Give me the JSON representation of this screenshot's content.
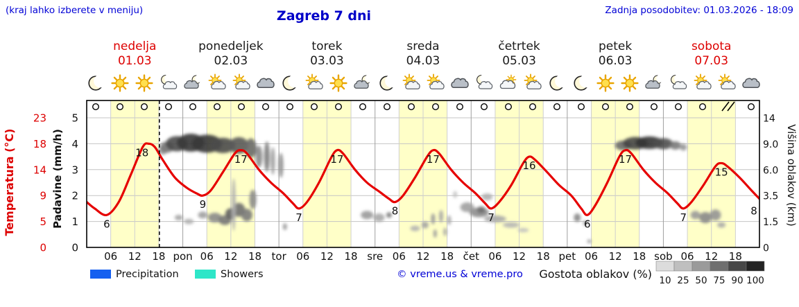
{
  "header": {
    "hint": "(kraj lahko izberete v meniju)",
    "title": "Zagreb 7 dni",
    "updated": "Zadnja posodobitev: 01.03.2026 - 18:09"
  },
  "colors": {
    "accent_blue": "#0000d6",
    "temp_red": "#e60000",
    "day_red": "#dd0000",
    "band_yellow": "#ffffc8",
    "precip_blue": "#1560f0",
    "showers_cyan": "#2ee6c8"
  },
  "days": [
    {
      "name": "nedelja",
      "date": "01.03",
      "highlight": true
    },
    {
      "name": "ponedeljek",
      "date": "02.03",
      "highlight": false
    },
    {
      "name": "torek",
      "date": "03.03",
      "highlight": false
    },
    {
      "name": "sreda",
      "date": "04.03",
      "highlight": false
    },
    {
      "name": "četrtek",
      "date": "05.03",
      "highlight": false
    },
    {
      "name": "petek",
      "date": "06.03",
      "highlight": false
    },
    {
      "name": "sobota",
      "date": "07.03",
      "highlight": true
    }
  ],
  "day_abbrs": [
    "pon",
    "tor",
    "sre",
    "čet",
    "pet",
    "sob"
  ],
  "hour_labels": [
    "06",
    "12",
    "18"
  ],
  "axes": {
    "temp_label": "Temperatura (°C)",
    "temp_ticks": [
      "23",
      "18",
      "14",
      "9",
      "5",
      "0"
    ],
    "precip_label": "Padavine (mm/h)",
    "precip_ticks": [
      "5",
      "4",
      "3",
      "2",
      "1",
      "0"
    ],
    "cloud_label": "Višina oblakov (km)",
    "cloud_ticks": [
      "14",
      "9.0",
      "6.0",
      "3.5",
      "1.5",
      "0"
    ]
  },
  "legend": {
    "precipitation": "Precipitation",
    "showers": "Showers",
    "copyright": "© vreme.us & vreme.pro",
    "cloud_density": "Gostota oblakov (%)",
    "scale_values": [
      "10",
      "25",
      "50",
      "75",
      "90",
      "100"
    ],
    "scale_grays": [
      "#dcdcdc",
      "#bfbfbf",
      "#9a9a9a",
      "#6f6f6f",
      "#474747",
      "#232323"
    ]
  },
  "chart_data": {
    "type": "line",
    "title": "Zagreb 7 dni",
    "x_unit": "hours from 01.03 00:00",
    "x_range": [
      0,
      168
    ],
    "now_hour": 18.15,
    "day_length_hours": 24,
    "daylight_band_hours": [
      6,
      18
    ],
    "temp_axis_values": [
      0,
      5,
      9,
      14,
      18,
      23
    ],
    "cloud_axis_values": [
      0,
      1.5,
      3.5,
      6,
      9,
      14
    ],
    "temperature_series": {
      "name": "Temperatura",
      "color": "#e60000",
      "points": [
        [
          0,
          8
        ],
        [
          2,
          7
        ],
        [
          5,
          6
        ],
        [
          8,
          8
        ],
        [
          11,
          13
        ],
        [
          14,
          17.5
        ],
        [
          15.5,
          18
        ],
        [
          17,
          17.5
        ],
        [
          19,
          15.5
        ],
        [
          22,
          12.5
        ],
        [
          25,
          10.5
        ],
        [
          27.5,
          9.4
        ],
        [
          29,
          9
        ],
        [
          31,
          10
        ],
        [
          34,
          13.5
        ],
        [
          37,
          16.5
        ],
        [
          38.5,
          17
        ],
        [
          40,
          16.5
        ],
        [
          43,
          14
        ],
        [
          46,
          11.5
        ],
        [
          49,
          9.5
        ],
        [
          51.5,
          7.8
        ],
        [
          53,
          7
        ],
        [
          55,
          8
        ],
        [
          58,
          11.5
        ],
        [
          61,
          15.8
        ],
        [
          62.5,
          17
        ],
        [
          64,
          16.5
        ],
        [
          67,
          14
        ],
        [
          70,
          11.5
        ],
        [
          73,
          9.8
        ],
        [
          75.5,
          8.5
        ],
        [
          77,
          8
        ],
        [
          79,
          9
        ],
        [
          82,
          12.5
        ],
        [
          85,
          16
        ],
        [
          86.5,
          17
        ],
        [
          88,
          16.5
        ],
        [
          91,
          14
        ],
        [
          94,
          11.5
        ],
        [
          97,
          9.5
        ],
        [
          99.5,
          7.8
        ],
        [
          101,
          7
        ],
        [
          103,
          8
        ],
        [
          106,
          11
        ],
        [
          109,
          15
        ],
        [
          110.5,
          16
        ],
        [
          112,
          15.5
        ],
        [
          115,
          13.5
        ],
        [
          118,
          11
        ],
        [
          121,
          9
        ],
        [
          123.5,
          7
        ],
        [
          125,
          6
        ],
        [
          127,
          7.5
        ],
        [
          130,
          11.5
        ],
        [
          133,
          16
        ],
        [
          134.5,
          17
        ],
        [
          136,
          16.5
        ],
        [
          139,
          14
        ],
        [
          142,
          11.5
        ],
        [
          145,
          9.5
        ],
        [
          147.5,
          7.8
        ],
        [
          149,
          7
        ],
        [
          151,
          8
        ],
        [
          154,
          11
        ],
        [
          157,
          14.5
        ],
        [
          158.5,
          15
        ],
        [
          160,
          14.5
        ],
        [
          163,
          12.5
        ],
        [
          166,
          10
        ],
        [
          168,
          8.5
        ]
      ]
    },
    "curve_labels": [
      [
        5,
        "6",
        0
      ],
      [
        14.5,
        "18",
        -4
      ],
      [
        29,
        "9",
        0
      ],
      [
        38.5,
        "17",
        0
      ],
      [
        53,
        "7",
        0
      ],
      [
        62.5,
        "17",
        0
      ],
      [
        77,
        "8",
        0
      ],
      [
        86.5,
        "17",
        0
      ],
      [
        101,
        "7",
        0
      ],
      [
        110.5,
        "16",
        0
      ],
      [
        125,
        "6",
        0
      ],
      [
        134.5,
        "17",
        0
      ],
      [
        149,
        "7",
        0
      ],
      [
        158.5,
        "15",
        0
      ],
      [
        168,
        "8",
        -8
      ]
    ],
    "clouds": [
      [
        19,
        8.2,
        6,
        6,
        "#999999"
      ],
      [
        20,
        8.6,
        10,
        8,
        "#777777"
      ],
      [
        22.5,
        9.0,
        16,
        11,
        "#4a4a4a"
      ],
      [
        26,
        9.2,
        20,
        13,
        "#383838"
      ],
      [
        30,
        9.0,
        22,
        13,
        "#383838"
      ],
      [
        34,
        8.8,
        18,
        11,
        "#4a4a4a"
      ],
      [
        38,
        8.8,
        14,
        12,
        "#5a5a5a"
      ],
      [
        41,
        8.5,
        8,
        14,
        "#6a6a6a"
      ],
      [
        43,
        7.5,
        5,
        16,
        "#8a8a8a"
      ],
      [
        45,
        7.5,
        4,
        22,
        "#7d7d7d"
      ],
      [
        46.5,
        7,
        3,
        20,
        "#9a9a9a"
      ],
      [
        48.5,
        6.5,
        3.5,
        18,
        "#8f8f8f"
      ],
      [
        23,
        1.8,
        6,
        4,
        "#a5a5a5"
      ],
      [
        25.5,
        1.5,
        7,
        4,
        "#b0b0b0"
      ],
      [
        29,
        2.0,
        7,
        5,
        "#a0a0a0"
      ],
      [
        32,
        1.8,
        10,
        7,
        "#8a8a8a"
      ],
      [
        34.5,
        1.6,
        9,
        7,
        "#777777"
      ],
      [
        36,
        2.1,
        8,
        8,
        "#5f5f5f"
      ],
      [
        38,
        2.4,
        9,
        10,
        "#6f6f6f"
      ],
      [
        40,
        2.0,
        8,
        9,
        "#7a7a7a"
      ],
      [
        41.5,
        3.2,
        5,
        14,
        "#8a8a8a"
      ],
      [
        36.7,
        2.8,
        3,
        38,
        "#b0b0b0"
      ],
      [
        49.5,
        1.2,
        3,
        5,
        "#9a9a9a"
      ],
      [
        70,
        2.0,
        9,
        6,
        "#9a9a9a"
      ],
      [
        73,
        1.8,
        8,
        6,
        "#a8a8a8"
      ],
      [
        75.5,
        2.0,
        4,
        4,
        "#7a7a7a"
      ],
      [
        82,
        1.1,
        7,
        4,
        "#b2b2b2"
      ],
      [
        84.5,
        1.3,
        5,
        5,
        "#a2a2a2"
      ],
      [
        86.5,
        1.7,
        3,
        8,
        "#9a9a9a"
      ],
      [
        87,
        0.8,
        2.5,
        6,
        "#9a9a9a"
      ],
      [
        88.5,
        1.9,
        3,
        9,
        "#a5a5a5"
      ],
      [
        89.5,
        0.9,
        2.5,
        6,
        "#a5a5a5"
      ],
      [
        90.5,
        1.6,
        3,
        7,
        "#ababab"
      ],
      [
        92,
        3.6,
        3,
        5,
        "#c2c2c2"
      ],
      [
        95,
        2.6,
        10,
        7,
        "#a0a0a0"
      ],
      [
        98,
        2.2,
        14,
        7,
        "#8d8d8d"
      ],
      [
        98.5,
        2.4,
        6,
        5,
        "#6f6f6f"
      ],
      [
        100,
        3.4,
        8,
        5,
        "#b0b0b0"
      ],
      [
        102,
        1.7,
        16,
        5,
        "#a8a8a8"
      ],
      [
        106,
        1.3,
        12,
        4,
        "#b5b5b5"
      ],
      [
        109,
        1.0,
        8,
        3,
        "#c0c0c0"
      ],
      [
        122.5,
        1.8,
        5,
        6,
        "#8a8a8a"
      ],
      [
        124.5,
        1.4,
        3,
        4,
        "#9a9a9a"
      ],
      [
        125.5,
        0.35,
        3,
        3,
        "#a0a0a0"
      ],
      [
        134,
        8.8,
        12,
        7,
        "#6a6a6a"
      ],
      [
        137,
        9.1,
        18,
        9,
        "#454545"
      ],
      [
        140.5,
        9.2,
        20,
        9,
        "#353535"
      ],
      [
        144,
        9.0,
        14,
        8,
        "#4f4f4f"
      ],
      [
        147,
        8.8,
        8,
        6,
        "#7a7a7a"
      ],
      [
        149,
        8.6,
        5,
        5,
        "#959595"
      ],
      [
        152,
        2.0,
        7,
        6,
        "#9a9a9a"
      ],
      [
        154.5,
        1.8,
        9,
        8,
        "#888888"
      ],
      [
        157,
        2.0,
        8,
        8,
        "#939393"
      ],
      [
        158.5,
        1.3,
        6,
        4,
        "#a8a8a8"
      ]
    ],
    "weather_icons": [
      "moon",
      "sun",
      "sun",
      "moon-cloud",
      "cloud-moon",
      "sun-cloud",
      "sun-cloud",
      "cloud",
      "moon",
      "sun-cloud",
      "sun",
      "cloud-moon",
      "moon",
      "sun-cloud",
      "sun-cloud",
      "cloud",
      "moon-cloud",
      "cloud-sun",
      "sun-cloud",
      "moon",
      "moon",
      "sun",
      "sun",
      "cloud-moon",
      "moon-cloud",
      "sun-cloud",
      "sun-cloud",
      "cloud"
    ],
    "wind": {
      "slots": 28,
      "barb_slot": 26
    }
  }
}
